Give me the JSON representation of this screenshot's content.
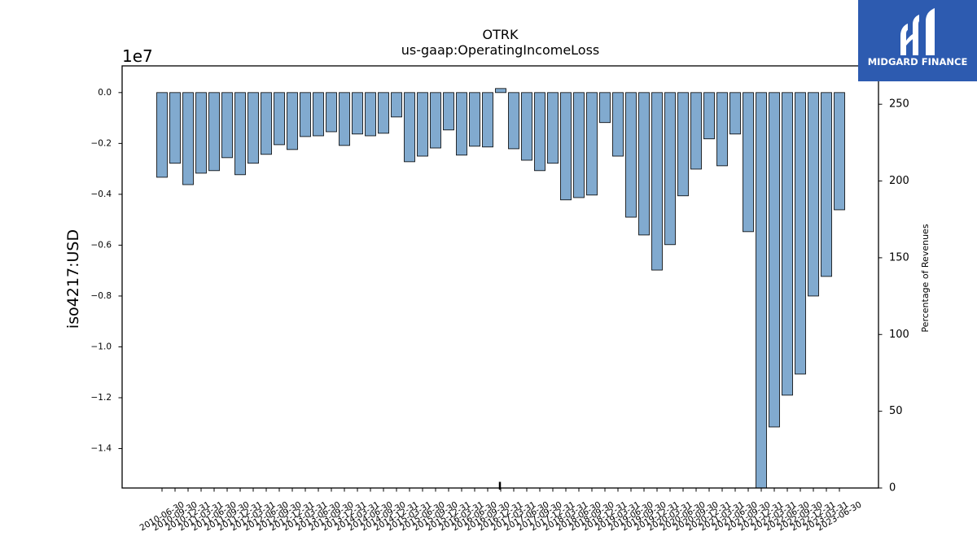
{
  "logo": {
    "text": "MIDGARD FINANCE",
    "bg_color": "#2d5bb0"
  },
  "chart_data": {
    "type": "bar",
    "title": "OTRK",
    "subtitle": "us-gaap:OperatingIncomeLoss",
    "ylabel": "iso4217:USD",
    "y_offset_label": "1e7",
    "y2label": "Percentage of Revenues",
    "categories": [
      "2010-06-30",
      "2010-09-30",
      "2010-12-31",
      "2011-03-31",
      "2011-06-30",
      "2011-09-30",
      "2011-12-31",
      "2012-03-31",
      "2012-06-30",
      "2012-09-30",
      "2012-12-31",
      "2013-03-31",
      "2013-06-30",
      "2013-09-30",
      "2013-12-31",
      "2014-03-31",
      "2014-06-30",
      "2014-09-30",
      "2014-12-31",
      "2015-03-31",
      "2015-06-30",
      "2015-09-30",
      "2015-12-31",
      "2016-03-31",
      "2016-06-30",
      "2016-09-30",
      "2016-12-31",
      "2017-03-31",
      "2017-06-30",
      "2017-09-30",
      "2017-12-31",
      "2018-03-31",
      "2018-06-30",
      "2018-09-30",
      "2018-12-31",
      "2019-03-31",
      "2019-06-30",
      "2019-09-30",
      "2019-12-31",
      "2020-03-31",
      "2020-06-30",
      "2020-09-30",
      "2020-12-31",
      "2021-03-31",
      "2021-06-30",
      "2021-09-30",
      "2021-12-31",
      "2022-03-31",
      "2022-06-30",
      "2022-09-30",
      "2022-12-31",
      "2023-03-31",
      "2023-06-30"
    ],
    "values": [
      -3330000,
      -2780000,
      -3620000,
      -3170000,
      -3070000,
      -2560000,
      -3230000,
      -2780000,
      -2430000,
      -2050000,
      -2240000,
      -1730000,
      -1700000,
      -1540000,
      -2080000,
      -1630000,
      -1700000,
      -1600000,
      -960000,
      -2720000,
      -2500000,
      -2180000,
      -1470000,
      -2460000,
      -2110000,
      -2140000,
      160000,
      -2210000,
      -2660000,
      -3070000,
      -2780000,
      -4220000,
      -4130000,
      -4030000,
      -1180000,
      -2500000,
      -4900000,
      -5600000,
      -6980000,
      -5980000,
      -4060000,
      -3010000,
      -1820000,
      -2880000,
      -1630000,
      -5470000,
      -15600000,
      -13150000,
      -11900000,
      -11070000,
      -8000000,
      -7230000,
      -4610000
    ],
    "ylim": [
      -15550000,
      1050000
    ],
    "yticks": [
      {
        "value": 0,
        "label": "0.0"
      },
      {
        "value": -2000000,
        "label": "−0.2"
      },
      {
        "value": -4000000,
        "label": "−0.4"
      },
      {
        "value": -6000000,
        "label": "−0.6"
      },
      {
        "value": -8000000,
        "label": "−0.8"
      },
      {
        "value": -10000000,
        "label": "−1.0"
      },
      {
        "value": -12000000,
        "label": "−1.2"
      },
      {
        "value": -14000000,
        "label": "−1.4"
      }
    ],
    "y2lim": [
      0,
      275
    ],
    "y2ticks": [
      {
        "value": 0,
        "label": "0"
      },
      {
        "value": 50,
        "label": "50"
      },
      {
        "value": 100,
        "label": "100"
      },
      {
        "value": 150,
        "label": "150"
      },
      {
        "value": 200,
        "label": "200"
      },
      {
        "value": 250,
        "label": "250"
      }
    ],
    "y2_values": [
      null,
      null,
      null,
      null,
      null,
      null,
      null,
      null,
      null,
      null,
      null,
      null,
      null,
      null,
      null,
      null,
      null,
      null,
      null,
      null,
      null,
      null,
      null,
      null,
      null,
      null,
      4,
      null,
      null,
      null,
      null,
      null,
      null,
      null,
      null,
      null,
      null,
      null,
      null,
      null,
      null,
      null,
      null,
      null,
      null,
      null,
      null,
      null,
      null,
      null,
      null,
      null,
      null
    ],
    "bar_color": "#81aacf",
    "edge_color": "#000000",
    "grid": false
  }
}
